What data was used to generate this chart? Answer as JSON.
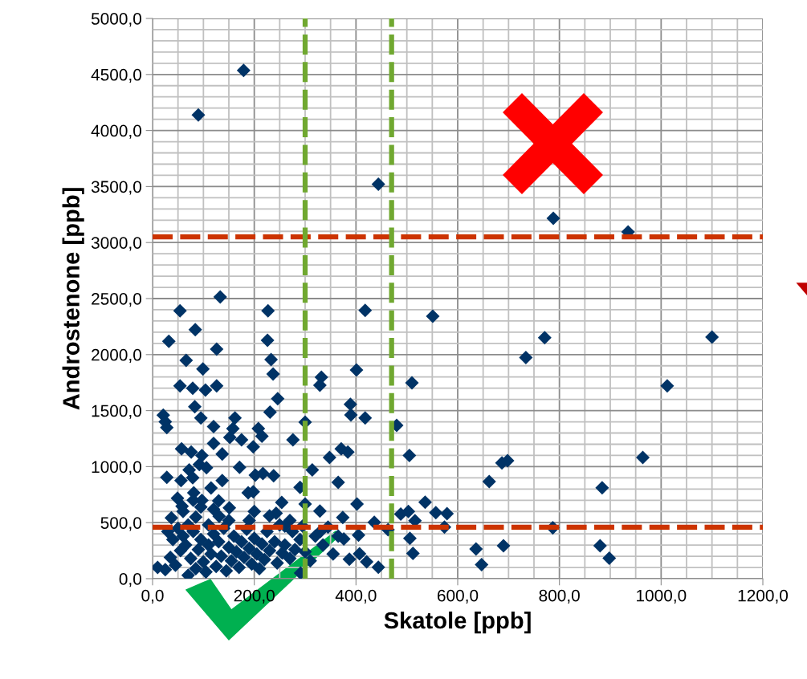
{
  "chart_data": {
    "type": "scatter",
    "xlabel": "Skatole [ppb]",
    "ylabel": "Androstenone [ppb]",
    "xlim": [
      0,
      1200
    ],
    "ylim": [
      0,
      5000
    ],
    "xticks": [
      {
        "value": 0,
        "label": "0,0"
      },
      {
        "value": 200,
        "label": "200,0"
      },
      {
        "value": 400,
        "label": "400,0"
      },
      {
        "value": 600,
        "label": "600,0"
      },
      {
        "value": 800,
        "label": "800,0"
      },
      {
        "value": 1000,
        "label": "1000,0"
      },
      {
        "value": 1200,
        "label": "1200,0"
      }
    ],
    "yticks": [
      {
        "value": 0,
        "label": "0,0"
      },
      {
        "value": 500,
        "label": "500,0"
      },
      {
        "value": 1000,
        "label": "1000,0"
      },
      {
        "value": 1500,
        "label": "1500,0"
      },
      {
        "value": 2000,
        "label": "2000,0"
      },
      {
        "value": 2500,
        "label": "2500,0"
      },
      {
        "value": 3000,
        "label": "3000,0"
      },
      {
        "value": 3500,
        "label": "3500,0"
      },
      {
        "value": 4000,
        "label": "4000,0"
      },
      {
        "value": 4500,
        "label": "4500,0"
      },
      {
        "value": 5000,
        "label": "5000,0"
      }
    ],
    "grid": true,
    "marker": "diamond",
    "ref_lines": [
      {
        "axis": "y",
        "value": 3050,
        "color": "#cc3300",
        "line_style": "dashed"
      },
      {
        "axis": "y",
        "value": 460,
        "color": "#cc3300",
        "line_style": "dashed"
      },
      {
        "axis": "x",
        "value": 300,
        "color": "#70a830",
        "line_style": "dashed"
      },
      {
        "axis": "x",
        "value": 470,
        "color": "#70a830",
        "line_style": "dashed"
      }
    ],
    "series": [
      {
        "color": "#003366",
        "x": [
          133,
          54,
          227,
          84,
          32,
          226,
          126,
          233,
          66,
          237,
          99,
          54,
          79,
          104,
          126,
          246,
          231,
          83,
          95,
          21,
          25,
          28,
          120,
          162,
          158,
          152,
          175,
          208,
          215,
          198,
          276,
          300,
          120,
          57,
          76,
          97,
          137,
          92,
          106,
          171,
          72,
          28,
          56,
          79,
          137,
          115,
          202,
          217,
          238,
          188,
          198,
          314,
          348,
          332,
          329,
          371,
          384,
          365,
          389,
          390,
          401,
          290,
          130,
          151,
          131,
          49,
          58,
          81,
          97,
          254,
          37,
          329,
          300,
          374,
          243,
          376,
          387,
          291,
          418,
          551,
          510,
          418,
          480,
          505,
          402,
          536,
          488,
          503,
          516,
          557,
          579,
          574,
          436,
          463,
          405,
          506,
          512,
          407,
          421,
          444,
          771,
          734,
          1100,
          1012,
          687,
          698,
          662,
          964,
          884,
          787,
          636,
          647,
          690,
          880,
          898,
          179,
          90,
          444,
          788,
          935,
          10,
          25,
          35,
          45,
          55,
          60,
          65,
          70,
          75,
          80,
          85,
          90,
          95,
          100,
          105,
          110,
          115,
          120,
          125,
          130,
          135,
          140,
          145,
          150,
          155,
          160,
          165,
          170,
          175,
          180,
          185,
          190,
          195,
          200,
          205,
          210,
          215,
          220,
          225,
          230,
          240,
          245,
          250,
          255,
          260,
          270,
          275,
          280,
          290,
          295,
          300,
          310,
          320,
          335,
          345,
          355,
          70,
          50,
          40,
          30,
          85,
          110,
          150,
          190,
          270,
          60,
          95,
          80,
          120,
          200,
          230,
          260,
          330,
          365
        ],
        "values": [
          2514,
          2390,
          2390,
          2223,
          2118,
          2127,
          2049,
          1956,
          1948,
          1827,
          1872,
          1721,
          1700,
          1683,
          1721,
          1606,
          1487,
          1535,
          1434,
          1459,
          1400,
          1349,
          1357,
          1434,
          1340,
          1261,
          1239,
          1340,
          1271,
          1177,
          1239,
          1397,
          1207,
          1159,
          1130,
          1099,
          1113,
          1019,
          991,
          994,
          970,
          904,
          876,
          900,
          876,
          809,
          924,
          938,
          919,
          766,
          776,
          970,
          1082,
          1798,
          1726,
          1159,
          1130,
          859,
          1557,
          1461,
          1863,
          815,
          695,
          633,
          557,
          718,
          647,
          766,
          699,
          680,
          542,
          604,
          666,
          546,
          583,
          355,
          174,
          50,
          2395,
          2342,
          1748,
          1434,
          1368,
          1099,
          666,
          683,
          576,
          600,
          518,
          590,
          580,
          460,
          504,
          437,
          389,
          360,
          226,
          222,
          150,
          102,
          2150,
          1974,
          2156,
          1721,
          1034,
          1053,
          867,
          1082,
          812,
          454,
          265,
          126,
          294,
          294,
          182,
          4537,
          4139,
          3520,
          3217,
          3095,
          100,
          80,
          190,
          120,
          250,
          380,
          300,
          30,
          180,
          420,
          90,
          260,
          350,
          150,
          60,
          300,
          220,
          400,
          110,
          330,
          200,
          450,
          70,
          280,
          160,
          380,
          240,
          100,
          330,
          190,
          440,
          270,
          130,
          360,
          220,
          90,
          310,
          170,
          420,
          250,
          330,
          140,
          480,
          230,
          300,
          180,
          420,
          260,
          350,
          470,
          240,
          160,
          380,
          300,
          460,
          220,
          480,
          450,
          350,
          420,
          550,
          480,
          520,
          520,
          520,
          600,
          640,
          700,
          620,
          600,
          560,
          470,
          420,
          380
        ]
      }
    ],
    "legend": false
  }
}
